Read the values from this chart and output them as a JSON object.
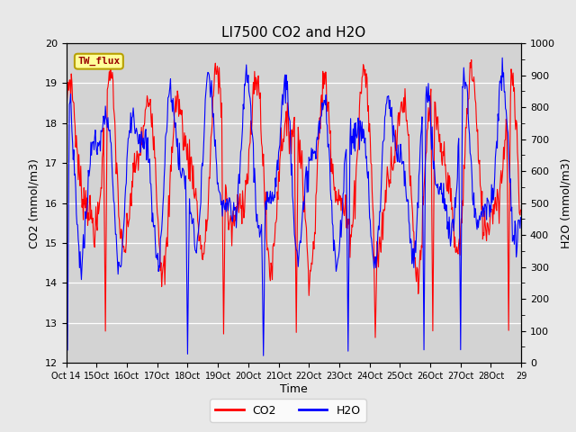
{
  "title": "LI7500 CO2 and H2O",
  "xlabel": "Time",
  "ylabel_left": "CO2 (mmol/m3)",
  "ylabel_right": "H2O (mmol/m3)",
  "ylim_left": [
    12.0,
    20.0
  ],
  "ylim_right": [
    0,
    1000
  ],
  "yticks_left": [
    12.0,
    13.0,
    14.0,
    15.0,
    16.0,
    17.0,
    18.0,
    19.0,
    20.0
  ],
  "yticks_right": [
    0,
    100,
    200,
    300,
    400,
    500,
    600,
    700,
    800,
    900,
    1000
  ],
  "xtick_labels": [
    "Oct 14",
    "Oct 15",
    "Oct 16",
    "Oct 17",
    "Oct 18",
    "Oct 19",
    "Oct 20",
    "Oct 21",
    "Oct 22",
    "Oct 23",
    "Oct 24",
    "Oct 25",
    "Oct 26",
    "Oct 27",
    "Oct 28",
    "Oct 29"
  ],
  "co2_color": "#ff0000",
  "h2o_color": "#0000ff",
  "background_color": "#e8e8e8",
  "plot_bg_color": "#d3d3d3",
  "annotation_text": "TW_flux",
  "annotation_bg": "#ffff99",
  "annotation_border": "#b8a000",
  "legend_co2": "CO2",
  "legend_h2o": "H2O",
  "title_fontsize": 11,
  "axis_label_fontsize": 9,
  "tick_fontsize": 8,
  "n_days": 15,
  "pts_per_day": 48
}
